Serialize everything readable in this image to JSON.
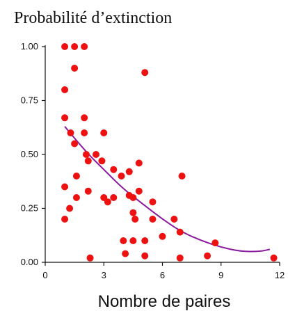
{
  "chart_data": {
    "type": "scatter",
    "title": "Probabilité d’extinction",
    "xlabel": "Nombre de paires",
    "ylabel": "",
    "xlim": [
      0,
      12
    ],
    "ylim": [
      0,
      1
    ],
    "xticks": [
      "0",
      "3",
      "6",
      "9",
      "12"
    ],
    "yticks": [
      "0.00",
      "0.25",
      "0.50",
      "0.75",
      "1.00"
    ],
    "grid": false,
    "colors": {
      "points": "#ee1111",
      "curve": "#8b1a9e",
      "axis": "#111111"
    },
    "points": [
      {
        "x": 1.0,
        "y": 1.0
      },
      {
        "x": 1.0,
        "y": 0.8
      },
      {
        "x": 1.0,
        "y": 0.67
      },
      {
        "x": 1.0,
        "y": 0.35
      },
      {
        "x": 1.0,
        "y": 0.2
      },
      {
        "x": 1.25,
        "y": 0.25
      },
      {
        "x": 1.3,
        "y": 0.6
      },
      {
        "x": 1.5,
        "y": 1.0
      },
      {
        "x": 1.5,
        "y": 0.9
      },
      {
        "x": 1.5,
        "y": 0.55
      },
      {
        "x": 1.6,
        "y": 0.4
      },
      {
        "x": 1.6,
        "y": 0.3
      },
      {
        "x": 2.0,
        "y": 1.0
      },
      {
        "x": 2.0,
        "y": 0.67
      },
      {
        "x": 2.0,
        "y": 0.6
      },
      {
        "x": 2.1,
        "y": 0.5
      },
      {
        "x": 2.2,
        "y": 0.47
      },
      {
        "x": 2.2,
        "y": 0.33
      },
      {
        "x": 2.3,
        "y": 0.02
      },
      {
        "x": 2.6,
        "y": 0.5
      },
      {
        "x": 2.9,
        "y": 0.47
      },
      {
        "x": 3.0,
        "y": 0.6
      },
      {
        "x": 3.0,
        "y": 0.3
      },
      {
        "x": 3.2,
        "y": 0.28
      },
      {
        "x": 3.5,
        "y": 0.43
      },
      {
        "x": 3.5,
        "y": 0.3
      },
      {
        "x": 3.9,
        "y": 0.4
      },
      {
        "x": 4.0,
        "y": 0.1
      },
      {
        "x": 4.1,
        "y": 0.04
      },
      {
        "x": 4.3,
        "y": 0.42
      },
      {
        "x": 4.3,
        "y": 0.31
      },
      {
        "x": 4.5,
        "y": 0.23
      },
      {
        "x": 4.5,
        "y": 0.3
      },
      {
        "x": 4.5,
        "y": 0.1
      },
      {
        "x": 4.6,
        "y": 0.2
      },
      {
        "x": 4.8,
        "y": 0.33
      },
      {
        "x": 4.8,
        "y": 0.46
      },
      {
        "x": 5.1,
        "y": 0.88
      },
      {
        "x": 5.1,
        "y": 0.1
      },
      {
        "x": 5.1,
        "y": 0.03
      },
      {
        "x": 5.5,
        "y": 0.28
      },
      {
        "x": 5.5,
        "y": 0.2
      },
      {
        "x": 6.0,
        "y": 0.12
      },
      {
        "x": 6.6,
        "y": 0.2
      },
      {
        "x": 6.9,
        "y": 0.14
      },
      {
        "x": 7.0,
        "y": 0.4
      },
      {
        "x": 6.9,
        "y": 0.02
      },
      {
        "x": 8.3,
        "y": 0.03
      },
      {
        "x": 8.7,
        "y": 0.09
      },
      {
        "x": 11.7,
        "y": 0.02
      }
    ],
    "fit_curve": [
      {
        "x": 1.0,
        "y": 0.63
      },
      {
        "x": 2.0,
        "y": 0.52
      },
      {
        "x": 3.0,
        "y": 0.43
      },
      {
        "x": 4.0,
        "y": 0.34
      },
      {
        "x": 5.0,
        "y": 0.27
      },
      {
        "x": 6.0,
        "y": 0.2
      },
      {
        "x": 7.0,
        "y": 0.14
      },
      {
        "x": 8.0,
        "y": 0.1
      },
      {
        "x": 9.0,
        "y": 0.07
      },
      {
        "x": 10.0,
        "y": 0.05
      },
      {
        "x": 11.0,
        "y": 0.05
      },
      {
        "x": 11.5,
        "y": 0.06
      }
    ]
  }
}
